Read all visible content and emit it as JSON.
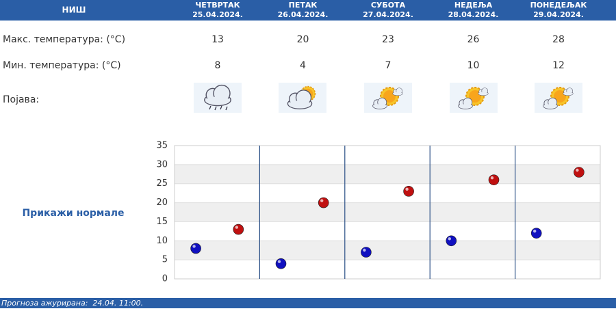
{
  "header": {
    "city": "НИШ",
    "days": [
      {
        "name": "ЧЕТВРТАК",
        "date": "25.04.2024."
      },
      {
        "name": "ПЕТАК",
        "date": "26.04.2024."
      },
      {
        "name": "СУБОТА",
        "date": "27.04.2024."
      },
      {
        "name": "НЕДЕЉА",
        "date": "28.04.2024."
      },
      {
        "name": "ПОНЕДЕЉАК",
        "date": "29.04.2024."
      }
    ]
  },
  "labels": {
    "max": "Макс. температура: (°C)",
    "min": "Мин. температура: (°C)",
    "phenomenon": "Појава:"
  },
  "normals_link": "Прикажи нормале",
  "footer": "Прогноза ажурирана:  24.04. 11:00.",
  "chart_data": {
    "type": "scatter",
    "series": [
      {
        "color": "#1010c0",
        "values": [
          8,
          4,
          7,
          10,
          12
        ]
      },
      {
        "color": "#c01010",
        "values": [
          13,
          20,
          23,
          26,
          28
        ]
      }
    ],
    "ylim": [
      0,
      35
    ],
    "yticks": [
      0,
      5,
      10,
      15,
      20,
      25,
      30,
      35
    ],
    "grid": true
  }
}
